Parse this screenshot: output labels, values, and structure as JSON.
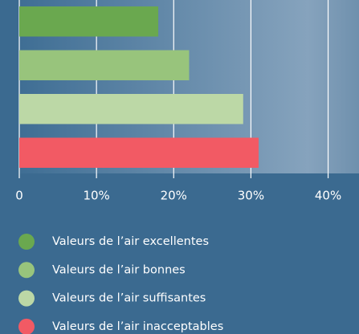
{
  "chart_data": {
    "type": "bar",
    "orientation": "horizontal",
    "categories": [
      "Valeurs de l’air excellentes",
      "Valeurs de l’air bonnes",
      "Valeurs de l’air suffisantes",
      "Valeurs de l’air inacceptables"
    ],
    "values": [
      18,
      22,
      29,
      31
    ],
    "colors": [
      "#6aa84f",
      "#98c47c",
      "#bcd8a6",
      "#f25a64"
    ],
    "xlim": [
      0,
      44
    ],
    "xticks": [
      0,
      {
        "value": 10,
        "label": "10%"
      },
      {
        "value": 20,
        "label": "20%"
      },
      {
        "value": 30,
        "label": "30%"
      },
      {
        "value": 40,
        "label": "40%"
      }
    ],
    "grid": true,
    "legend": "bottom"
  }
}
